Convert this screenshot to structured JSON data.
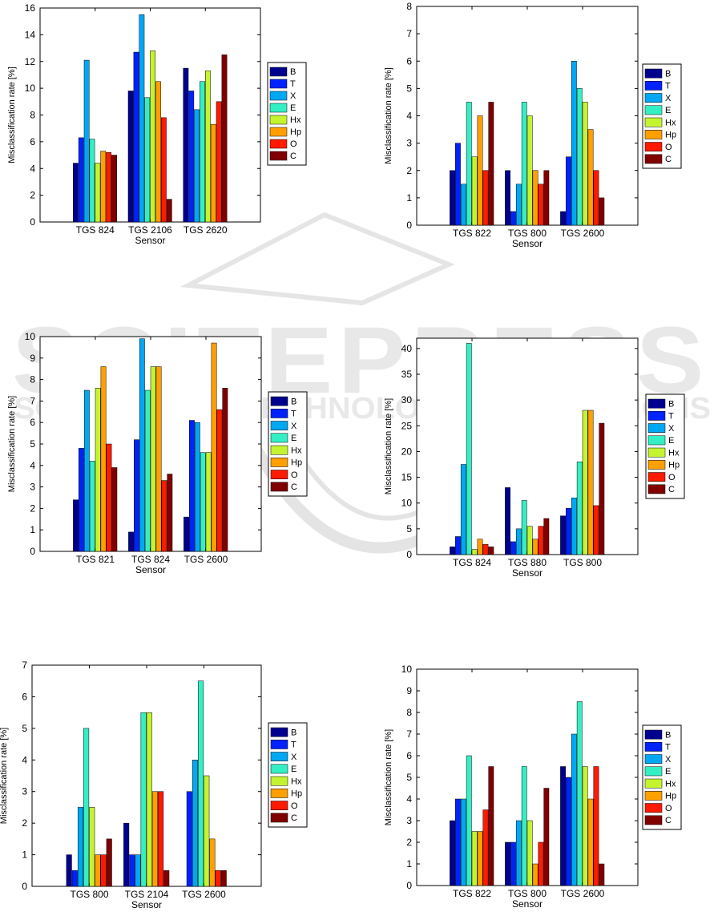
{
  "watermark": {
    "main": "SCITEPRESS",
    "sub": "SCIENCE AND TECHNOLOGY PUBLICATIONS"
  },
  "legend_colors": {
    "B": "#00008f",
    "T": "#0022ff",
    "X": "#00a8f4",
    "E": "#33f0c4",
    "Hx": "#c4f430",
    "Hp": "#ffa000",
    "O": "#ff1a00",
    "C": "#800000"
  },
  "chart_data": [
    {
      "type": "bar",
      "title": "",
      "xlabel": "Sensor",
      "ylabel": "Misclassification rate [%]",
      "ylim": [
        0,
        16
      ],
      "yticks": [
        "0",
        "2",
        "4",
        "6",
        "8",
        "10",
        "12",
        "14",
        "16"
      ],
      "categories": [
        "TGS 824",
        "TGS 2106",
        "TGS 2620"
      ],
      "series": [
        {
          "name": "B",
          "values": [
            4.4,
            9.8,
            11.5
          ]
        },
        {
          "name": "T",
          "values": [
            6.3,
            12.7,
            9.8
          ]
        },
        {
          "name": "X",
          "values": [
            12.1,
            15.5,
            8.4
          ]
        },
        {
          "name": "E",
          "values": [
            6.2,
            9.3,
            10.5
          ]
        },
        {
          "name": "Hx",
          "values": [
            4.4,
            12.8,
            11.3
          ]
        },
        {
          "name": "Hp",
          "values": [
            5.3,
            10.5,
            7.3
          ]
        },
        {
          "name": "O",
          "values": [
            5.2,
            7.8,
            9.0
          ]
        },
        {
          "name": "C",
          "values": [
            5.0,
            1.7,
            12.5
          ]
        }
      ],
      "legend": [
        "B",
        "T",
        "X",
        "E",
        "Hx",
        "Hp",
        "O",
        "C"
      ]
    },
    {
      "type": "bar",
      "title": "",
      "xlabel": "Sensor",
      "ylabel": "Misclassification rate [%]",
      "ylim": [
        0,
        8
      ],
      "yticks": [
        "0",
        "1",
        "2",
        "3",
        "4",
        "5",
        "6",
        "7",
        "8"
      ],
      "categories": [
        "TGS 822",
        "TGS 800",
        "TGS 2600"
      ],
      "series": [
        {
          "name": "B",
          "values": [
            2.0,
            2.0,
            0.5
          ]
        },
        {
          "name": "T",
          "values": [
            3.0,
            0.5,
            2.5
          ]
        },
        {
          "name": "X",
          "values": [
            1.5,
            1.5,
            6.0
          ]
        },
        {
          "name": "E",
          "values": [
            4.5,
            4.5,
            5.0
          ]
        },
        {
          "name": "Hx",
          "values": [
            2.5,
            4.0,
            4.5
          ]
        },
        {
          "name": "Hp",
          "values": [
            4.0,
            2.0,
            3.5
          ]
        },
        {
          "name": "O",
          "values": [
            2.0,
            1.5,
            2.0
          ]
        },
        {
          "name": "C",
          "values": [
            4.5,
            2.0,
            1.0
          ]
        }
      ],
      "legend": [
        "B",
        "T",
        "X",
        "E",
        "Hx",
        "Hp",
        "O",
        "C"
      ]
    },
    {
      "type": "bar",
      "title": "",
      "xlabel": "Sensor",
      "ylabel": "Misclassification rate [%]",
      "ylim": [
        0,
        10
      ],
      "yticks": [
        "0",
        "1",
        "2",
        "3",
        "4",
        "5",
        "6",
        "7",
        "8",
        "9",
        "10"
      ],
      "categories": [
        "TGS 821",
        "TGS 824",
        "TGS 2600"
      ],
      "series": [
        {
          "name": "B",
          "values": [
            2.4,
            0.9,
            1.6
          ]
        },
        {
          "name": "T",
          "values": [
            4.8,
            5.2,
            6.1
          ]
        },
        {
          "name": "X",
          "values": [
            7.5,
            9.9,
            6.0
          ]
        },
        {
          "name": "E",
          "values": [
            4.2,
            7.5,
            4.6
          ]
        },
        {
          "name": "Hx",
          "values": [
            7.6,
            8.6,
            4.6
          ]
        },
        {
          "name": "Hp",
          "values": [
            8.6,
            8.6,
            9.7
          ]
        },
        {
          "name": "O",
          "values": [
            5.0,
            3.3,
            6.6
          ]
        },
        {
          "name": "C",
          "values": [
            3.9,
            3.6,
            7.6
          ]
        }
      ],
      "legend": [
        "B",
        "T",
        "X",
        "E",
        "Hx",
        "Hp",
        "O",
        "C"
      ]
    },
    {
      "type": "bar",
      "title": "",
      "xlabel": "Sensor",
      "ylabel": "Misclassification rate [%]",
      "ylim": [
        0,
        42
      ],
      "yticks": [
        "0",
        "5",
        "10",
        "15",
        "20",
        "25",
        "30",
        "35",
        "40"
      ],
      "yticks_values": [
        0,
        5,
        10,
        15,
        20,
        25,
        30,
        35,
        40
      ],
      "categories": [
        "TGS 824",
        "TGS 880",
        "TGS 800"
      ],
      "series": [
        {
          "name": "B",
          "values": [
            1.5,
            13.0,
            7.5
          ]
        },
        {
          "name": "T",
          "values": [
            3.5,
            2.5,
            9.0
          ]
        },
        {
          "name": "X",
          "values": [
            17.5,
            5.0,
            11.0
          ]
        },
        {
          "name": "E",
          "values": [
            41.0,
            10.5,
            18.0
          ]
        },
        {
          "name": "Hx",
          "values": [
            1.0,
            5.5,
            28.0
          ]
        },
        {
          "name": "Hp",
          "values": [
            3.0,
            3.0,
            28.0
          ]
        },
        {
          "name": "O",
          "values": [
            2.0,
            5.5,
            9.5
          ]
        },
        {
          "name": "C",
          "values": [
            1.5,
            7.0,
            25.5
          ]
        }
      ],
      "legend": [
        "B",
        "T",
        "X",
        "E",
        "Hx",
        "Hp",
        "O",
        "C"
      ]
    },
    {
      "type": "bar",
      "title": "",
      "xlabel": "Sensor",
      "ylabel": "Misclassification rate [%]",
      "ylim": [
        0,
        7
      ],
      "yticks": [
        "0",
        "1",
        "2",
        "3",
        "4",
        "5",
        "6",
        "7"
      ],
      "categories": [
        "TGS 800",
        "TGS 2104",
        "TGS 2600"
      ],
      "series": [
        {
          "name": "B",
          "values": [
            1.0,
            2.0,
            0.0
          ]
        },
        {
          "name": "T",
          "values": [
            0.5,
            1.0,
            3.0
          ]
        },
        {
          "name": "X",
          "values": [
            2.5,
            1.0,
            4.0
          ]
        },
        {
          "name": "E",
          "values": [
            5.0,
            5.5,
            6.5
          ]
        },
        {
          "name": "Hx",
          "values": [
            2.5,
            5.5,
            3.5
          ]
        },
        {
          "name": "Hp",
          "values": [
            1.0,
            3.0,
            1.5
          ]
        },
        {
          "name": "O",
          "values": [
            1.0,
            3.0,
            0.5
          ]
        },
        {
          "name": "C",
          "values": [
            1.5,
            0.5,
            0.5
          ]
        }
      ],
      "legend": [
        "B",
        "T",
        "X",
        "E",
        "Hx",
        "Hp",
        "O",
        "C"
      ]
    },
    {
      "type": "bar",
      "title": "",
      "xlabel": "Sensor",
      "ylabel": "Misclassification rate [%]",
      "ylim": [
        0,
        10
      ],
      "yticks": [
        "0",
        "1",
        "2",
        "3",
        "4",
        "5",
        "6",
        "7",
        "8",
        "9",
        "10"
      ],
      "categories": [
        "TGS 822",
        "TGS 800",
        "TGS 2600"
      ],
      "series": [
        {
          "name": "B",
          "values": [
            3.0,
            2.0,
            5.5
          ]
        },
        {
          "name": "T",
          "values": [
            4.0,
            2.0,
            5.0
          ]
        },
        {
          "name": "X",
          "values": [
            4.0,
            3.0,
            7.0
          ]
        },
        {
          "name": "E",
          "values": [
            6.0,
            5.5,
            8.5
          ]
        },
        {
          "name": "Hx",
          "values": [
            2.5,
            3.0,
            5.5
          ]
        },
        {
          "name": "Hp",
          "values": [
            2.5,
            1.0,
            4.0
          ]
        },
        {
          "name": "O",
          "values": [
            3.5,
            2.0,
            5.5
          ]
        },
        {
          "name": "C",
          "values": [
            5.5,
            4.5,
            1.0
          ]
        }
      ],
      "legend": [
        "B",
        "T",
        "X",
        "E",
        "Hx",
        "Hp",
        "O",
        "C"
      ]
    }
  ]
}
